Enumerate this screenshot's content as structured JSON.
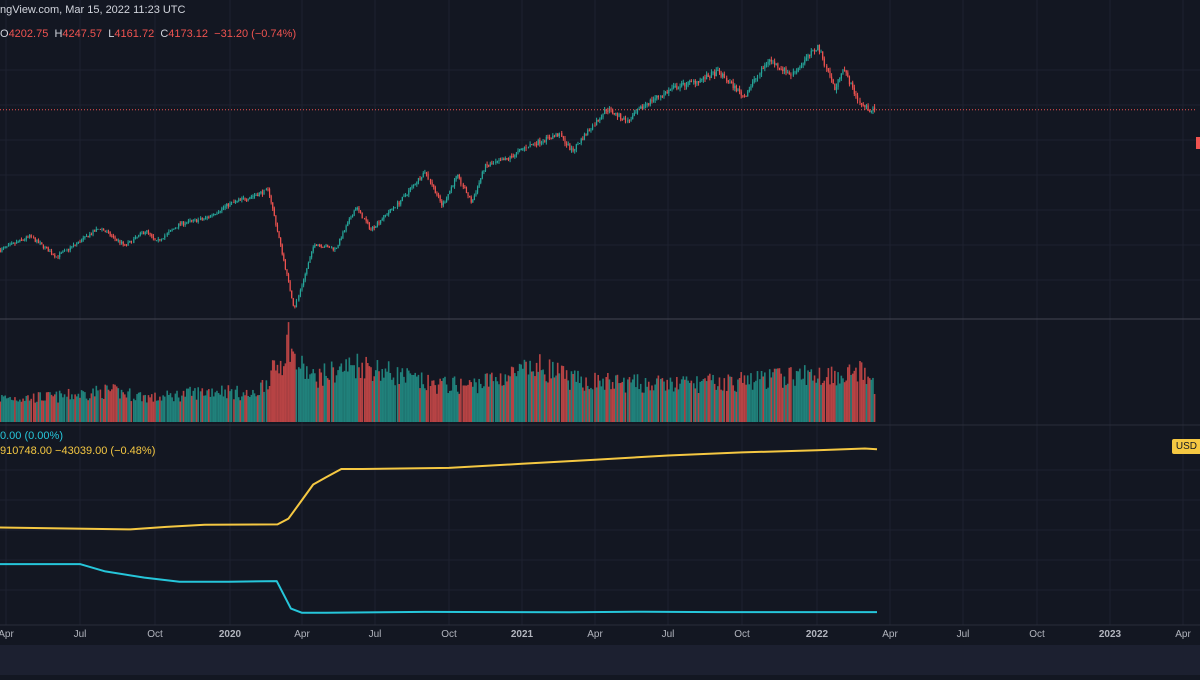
{
  "header": {
    "source_line": "ngView.com, Mar 15, 2022 11:23 UTC"
  },
  "ohlc": {
    "o_label": "O",
    "o_value": "4202.75",
    "h_label": "H",
    "h_value": "4247.57",
    "l_label": "L",
    "l_value": "4161.72",
    "c_label": "C",
    "c_value": "4173.12",
    "change": "−31.20 (−0.74%)"
  },
  "indicator_legend": {
    "line1": "0.00 (0.00%)",
    "line2": "910748.00  −43039.00 (−0.48%)",
    "scale_tag": "USD"
  },
  "colors": {
    "background": "#131722",
    "up": "#26a69a",
    "down": "#ef5350",
    "line_cyan": "#26c6da",
    "line_yellow": "#f5c842",
    "grid": "#1e2230",
    "axis_text": "#b2b5be"
  },
  "chart_data": {
    "type": "candlestick+volume+line",
    "x_axis_ticks": [
      "Apr",
      "Jul",
      "Oct",
      "2020",
      "Apr",
      "Jul",
      "Oct",
      "2021",
      "Apr",
      "Jul",
      "Oct",
      "2022",
      "Apr",
      "Jul",
      "Oct",
      "2023",
      "Apr"
    ],
    "x_axis_tick_dates": [
      "2019-04-01",
      "2019-07-01",
      "2019-10-01",
      "2020-01-01",
      "2020-04-01",
      "2020-07-01",
      "2020-10-01",
      "2021-01-01",
      "2021-04-01",
      "2021-07-01",
      "2021-10-01",
      "2022-01-01",
      "2022-04-01",
      "2022-07-01",
      "2022-10-01",
      "2023-01-01",
      "2023-04-01"
    ],
    "bold_ticks": [
      "2020",
      "2021",
      "2022",
      "2023"
    ],
    "last_close": 4173.12,
    "price_series": {
      "dates": [
        "2019-03-25",
        "2019-05-01",
        "2019-06-03",
        "2019-07-26",
        "2019-08-26",
        "2019-09-20",
        "2019-10-03",
        "2019-11-01",
        "2019-12-02",
        "2020-01-02",
        "2020-02-19",
        "2020-03-23",
        "2020-04-17",
        "2020-05-13",
        "2020-06-08",
        "2020-06-26",
        "2020-07-31",
        "2020-09-02",
        "2020-09-23",
        "2020-10-12",
        "2020-10-30",
        "2020-11-16",
        "2020-12-16",
        "2021-01-08",
        "2021-02-16",
        "2021-03-04",
        "2021-04-16",
        "2021-05-12",
        "2021-06-04",
        "2021-07-09",
        "2021-08-13",
        "2021-09-02",
        "2021-10-04",
        "2021-11-03",
        "2021-12-01",
        "2022-01-03",
        "2022-01-24",
        "2022-02-02",
        "2022-02-24",
        "2022-03-08",
        "2022-03-14"
      ],
      "values": [
        2810,
        2940,
        2745,
        3025,
        2850,
        3000,
        2885,
        3065,
        3115,
        3260,
        3390,
        2240,
        2875,
        2820,
        3230,
        3010,
        3270,
        3575,
        3240,
        3530,
        3270,
        3620,
        3700,
        3820,
        3935,
        3770,
        4185,
        4060,
        4230,
        4385,
        4470,
        4540,
        4300,
        4660,
        4513,
        4790,
        4360,
        4590,
        4225,
        4170,
        4173
      ]
    },
    "volume_series": {
      "dates": [
        "2019-03-25",
        "2019-06-01",
        "2019-08-05",
        "2019-10-01",
        "2019-12-20",
        "2020-02-01",
        "2020-03-09",
        "2020-03-16",
        "2020-03-23",
        "2020-04-15",
        "2020-06-11",
        "2020-09-08",
        "2020-10-28",
        "2021-01-27",
        "2021-03-04",
        "2021-06-18",
        "2021-09-17",
        "2021-11-30",
        "2022-01-24",
        "2022-02-24",
        "2022-03-14"
      ],
      "values": [
        2.3,
        2.4,
        3.0,
        2.3,
        3.1,
        2.5,
        6.1,
        8.3,
        5.9,
        4.2,
        5.6,
        3.6,
        3.5,
        5.3,
        4.0,
        3.6,
        3.8,
        4.4,
        4.6,
        4.8,
        3.2
      ]
    },
    "series": [
      {
        "color": "#26c6da",
        "dates": [
          "2019-03-20",
          "2019-07-01",
          "2019-08-01",
          "2019-09-18",
          "2019-10-31",
          "2019-12-31",
          "2020-02-29",
          "2020-03-18",
          "2020-04-01",
          "2020-05-01",
          "2020-09-01",
          "2021-03-01",
          "2021-06-01",
          "2021-09-01",
          "2021-12-01",
          "2022-03-16"
        ],
        "values": [
          2.4,
          2.4,
          2.05,
          1.75,
          1.55,
          1.55,
          1.58,
          0.25,
          0.05,
          0.05,
          0.09,
          0.07,
          0.1,
          0.08,
          0.08,
          0.08
        ]
      },
      {
        "color": "#f5c842",
        "dates": [
          "2019-03-20",
          "2019-09-01",
          "2019-10-15",
          "2019-12-01",
          "2020-03-01",
          "2020-03-15",
          "2020-04-01",
          "2020-04-15",
          "2020-05-01",
          "2020-05-20",
          "2020-06-15",
          "2020-10-01",
          "2021-01-01",
          "2021-04-01",
          "2021-07-01",
          "2021-10-01",
          "2022-01-01",
          "2022-03-01",
          "2022-03-16"
        ],
        "values": [
          4.17,
          4.08,
          4.2,
          4.3,
          4.32,
          4.6,
          5.5,
          6.25,
          6.6,
          7.0,
          7.0,
          7.05,
          7.25,
          7.45,
          7.65,
          7.8,
          7.9,
          7.99,
          7.95
        ]
      }
    ]
  }
}
